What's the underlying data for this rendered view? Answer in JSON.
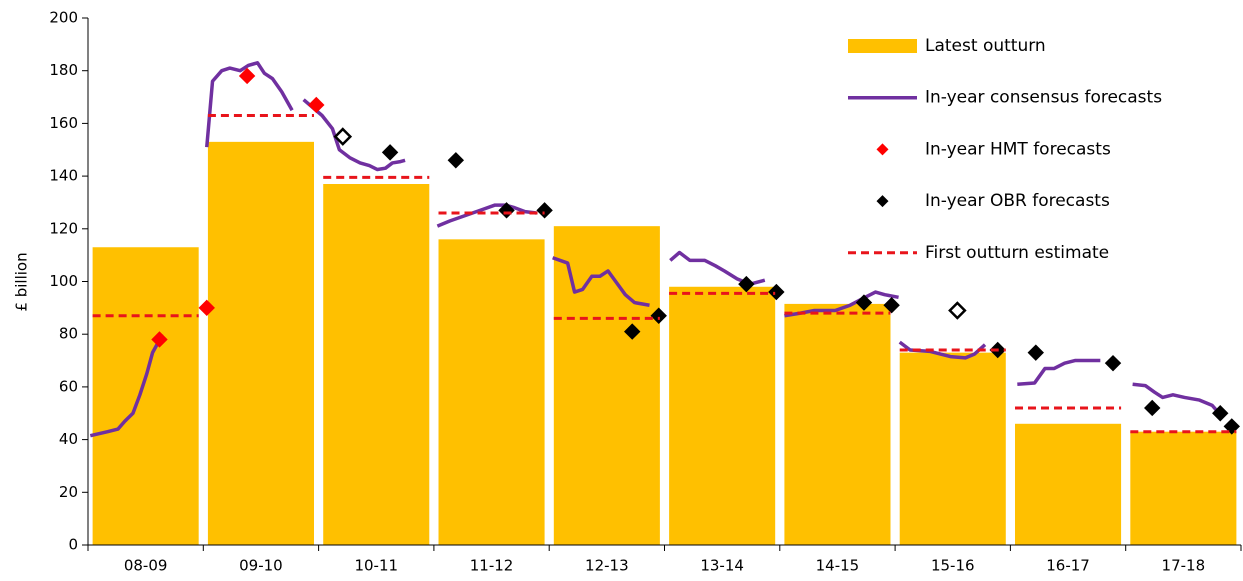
{
  "chart_data": {
    "type": "bar",
    "y_label": "£ billion",
    "categories": [
      "08-09",
      "09-10",
      "10-11",
      "11-12",
      "12-13",
      "13-14",
      "14-15",
      "15-16",
      "16-17",
      "17-18"
    ],
    "xlim": [
      0,
      10
    ],
    "ylim": [
      0,
      200
    ],
    "yticks": [
      0,
      20,
      40,
      60,
      80,
      100,
      120,
      140,
      160,
      180,
      200
    ],
    "grid": false,
    "legend": "top-right",
    "series": [
      {
        "name": "Latest outturn",
        "type": "bar",
        "color": "#ffc000",
        "values": [
          113,
          153,
          137,
          116,
          121,
          98,
          91.5,
          73,
          46,
          43
        ]
      },
      {
        "name": "In-year consensus forecasts",
        "type": "line",
        "color": "#7030a0",
        "x": [
          0.02,
          0.17,
          0.26,
          0.32,
          0.39,
          0.45,
          0.51,
          0.56,
          0.61,
          0.64,
          null,
          1.03,
          1.08,
          1.16,
          1.23,
          1.32,
          1.39,
          1.47,
          1.53,
          1.6,
          1.68,
          1.77,
          null,
          1.87,
          2.03,
          2.12,
          2.18,
          2.27,
          2.36,
          2.44,
          2.51,
          2.58,
          2.64,
          2.71,
          2.75,
          null,
          3.03,
          3.14,
          3.27,
          3.4,
          3.53,
          3.62,
          3.7,
          3.79,
          3.89,
          null,
          4.03,
          4.16,
          4.22,
          4.29,
          4.37,
          4.44,
          4.51,
          4.56,
          4.66,
          4.74,
          4.87,
          null,
          5.05,
          5.13,
          5.22,
          5.35,
          5.44,
          5.52,
          5.63,
          5.74,
          5.87,
          null,
          6.04,
          6.18,
          6.3,
          6.48,
          6.61,
          6.74,
          6.83,
          6.91,
          7.03,
          null,
          7.04,
          7.13,
          7.3,
          7.48,
          7.61,
          7.69,
          7.78,
          null,
          8.06,
          8.21,
          8.3,
          8.38,
          8.47,
          8.56,
          8.65,
          8.78,
          null,
          9.06,
          9.17,
          9.25,
          9.32,
          9.41,
          9.51,
          9.64,
          9.75,
          9.83
        ],
        "values": [
          41.5,
          43,
          44,
          47,
          50,
          57,
          65,
          73,
          77,
          80,
          null,
          151,
          176,
          180,
          181,
          180,
          182,
          183,
          179,
          177,
          172,
          165,
          null,
          169,
          163,
          158,
          150,
          147,
          145,
          144,
          142.5,
          143,
          145,
          145.5,
          146,
          null,
          121,
          123,
          125,
          127,
          129,
          129,
          128,
          126.5,
          126,
          null,
          109,
          107,
          96,
          97,
          102,
          102,
          104,
          101,
          95,
          92,
          91,
          null,
          108,
          111,
          108,
          108,
          106,
          104,
          101,
          99,
          100.5,
          null,
          87,
          88,
          89,
          89,
          91,
          94,
          96,
          95,
          94,
          null,
          77,
          74,
          73.5,
          71.5,
          71,
          72.5,
          76,
          null,
          61,
          61.5,
          67,
          67,
          69,
          70,
          70,
          70,
          null,
          61,
          60.5,
          58,
          56,
          57,
          56,
          55,
          53,
          49
        ]
      },
      {
        "name": "In-year HMT forecasts",
        "type": "scatter",
        "color": "#ff0000",
        "x": [
          0.62,
          1.03,
          1.38,
          1.98
        ],
        "values": [
          78,
          90,
          178,
          167
        ]
      },
      {
        "name": "In-year OBR forecasts",
        "type": "scatter",
        "color": "#000000",
        "x": [
          2.21,
          2.62,
          3.19,
          3.63,
          3.96,
          4.72,
          4.95,
          5.71,
          5.97,
          6.73,
          6.97,
          7.54,
          7.89,
          8.22,
          8.89,
          9.23,
          9.82,
          9.92
        ],
        "values": [
          155,
          149,
          146,
          127,
          127,
          81,
          87,
          99,
          96,
          92,
          91,
          89,
          74,
          73,
          69,
          52,
          50,
          45
        ],
        "filled": [
          false,
          true,
          true,
          true,
          true,
          true,
          true,
          true,
          true,
          true,
          true,
          false,
          true,
          true,
          true,
          true,
          true,
          true
        ]
      },
      {
        "name": "First outturn estimate",
        "type": "dashed",
        "color": "#e8141b",
        "values": [
          87,
          163,
          139.5,
          126,
          86,
          95.5,
          88,
          74,
          52,
          43
        ]
      }
    ]
  }
}
